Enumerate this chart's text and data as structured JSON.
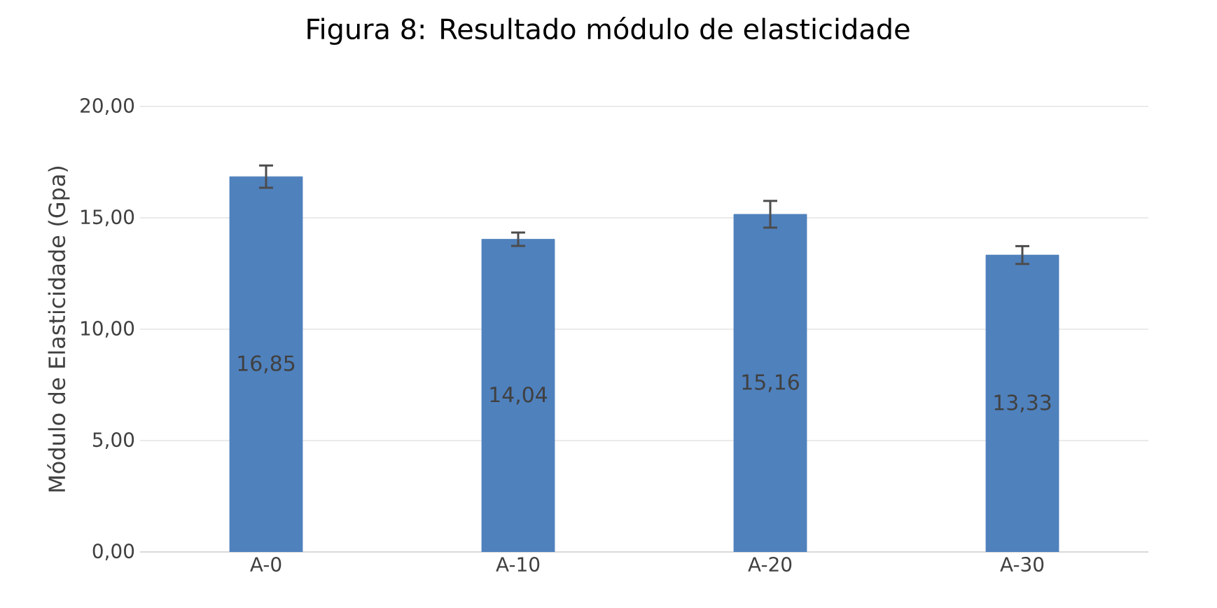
{
  "chart_data": {
    "type": "bar",
    "title": "Figura 8: Resultado módulo de elasticidade",
    "ylabel": "Módulo de Elasticidade (Gpa)",
    "categories": [
      "A-0",
      "A-10",
      "A-20",
      "A-30"
    ],
    "values": [
      16.85,
      14.04,
      15.16,
      13.33
    ],
    "value_labels": [
      "16,85",
      "14,04",
      "15,16",
      "13,33"
    ],
    "errors": [
      0.5,
      0.3,
      0.6,
      0.4
    ],
    "color": "#4f81bd",
    "ylim": [
      0,
      20
    ],
    "yticks": [
      {
        "value": 0,
        "label": "0,00"
      },
      {
        "value": 5,
        "label": "5,00"
      },
      {
        "value": 10,
        "label": "10,00"
      },
      {
        "value": 15,
        "label": "15,00"
      },
      {
        "value": 20,
        "label": "20,00"
      }
    ],
    "grid": "y"
  }
}
